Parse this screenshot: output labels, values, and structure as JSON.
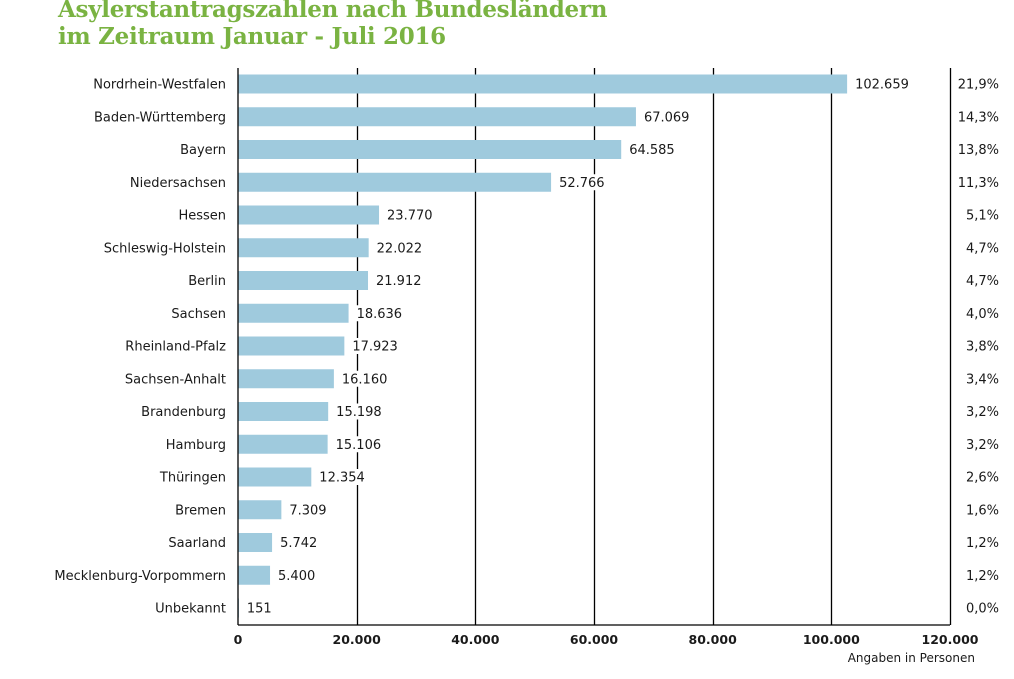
{
  "title": {
    "line1": "Asylerstantragszahlen nach Bundesländern",
    "line2": "im Zeitraum Januar - Juli 2016"
  },
  "chart_data": {
    "type": "bar",
    "orientation": "horizontal",
    "categories": [
      "Nordrhein-Westfalen",
      "Baden-Württemberg",
      "Bayern",
      "Niedersachsen",
      "Hessen",
      "Schleswig-Holstein",
      "Berlin",
      "Sachsen",
      "Rheinland-Pfalz",
      "Sachsen-Anhalt",
      "Brandenburg",
      "Hamburg",
      "Thüringen",
      "Bremen",
      "Saarland",
      "Mecklenburg-Vorpommern",
      "Unbekannt"
    ],
    "values": [
      102659,
      67069,
      64585,
      52766,
      23770,
      22022,
      21912,
      18636,
      17923,
      16160,
      15198,
      15106,
      12354,
      7309,
      5742,
      5400,
      151
    ],
    "value_labels": [
      "102.659",
      "67.069",
      "64.585",
      "52.766",
      "23.770",
      "22.022",
      "21.912",
      "18.636",
      "17.923",
      "16.160",
      "15.198",
      "15.106",
      "12.354",
      "7.309",
      "5.742",
      "5.400",
      "151"
    ],
    "percent_labels": [
      "21,9%",
      "14,3%",
      "13,8%",
      "11,3%",
      "5,1%",
      "4,7%",
      "4,7%",
      "4,0%",
      "3,8%",
      "3,4%",
      "3,2%",
      "3,2%",
      "2,6%",
      "1,6%",
      "1,2%",
      "1,2%",
      "0,0%"
    ],
    "xlim": [
      0,
      120000
    ],
    "xticks": [
      0,
      20000,
      40000,
      60000,
      80000,
      100000,
      120000
    ],
    "xtick_labels": [
      "0",
      "20.000",
      "40.000",
      "60.000",
      "80.000",
      "100.000",
      "120.000"
    ],
    "xlabel": "Angaben in Personen",
    "grid": true,
    "bar_color": "#9fcadd",
    "title_color": "#7ab342"
  }
}
